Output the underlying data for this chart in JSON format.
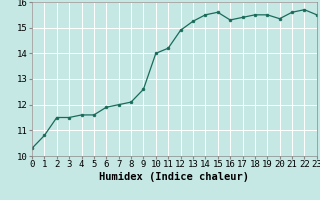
{
  "x": [
    0,
    1,
    2,
    3,
    4,
    5,
    6,
    7,
    8,
    9,
    10,
    11,
    12,
    13,
    14,
    15,
    16,
    17,
    18,
    19,
    20,
    21,
    22,
    23
  ],
  "y": [
    10.3,
    10.8,
    11.5,
    11.5,
    11.6,
    11.6,
    11.9,
    12.0,
    12.1,
    12.6,
    14.0,
    14.2,
    14.9,
    15.25,
    15.5,
    15.6,
    15.3,
    15.4,
    15.5,
    15.5,
    15.35,
    15.6,
    15.7,
    15.5
  ],
  "xlabel": "Humidex (Indice chaleur)",
  "xlim": [
    0,
    23
  ],
  "ylim": [
    10,
    16
  ],
  "bg_color": "#c5e8e5",
  "line_color": "#1a6b5a",
  "marker_color": "#1a6b5a",
  "grid_color": "#ffffff",
  "xticks": [
    0,
    1,
    2,
    3,
    4,
    5,
    6,
    7,
    8,
    9,
    10,
    11,
    12,
    13,
    14,
    15,
    16,
    17,
    18,
    19,
    20,
    21,
    22,
    23
  ],
  "yticks": [
    10,
    11,
    12,
    13,
    14,
    15,
    16
  ],
  "tick_fontsize": 6.5,
  "label_fontsize": 7.5
}
